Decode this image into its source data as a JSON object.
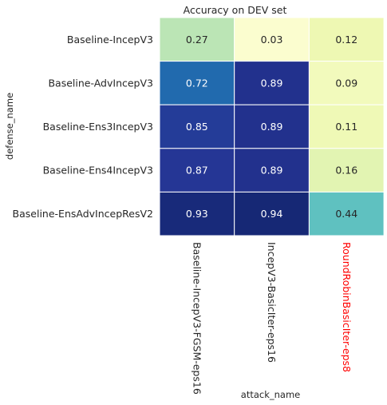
{
  "chart_data": {
    "type": "heatmap",
    "title": "Accuracy on DEV set",
    "xlabel": "attack_name",
    "ylabel": "defense_name",
    "rows": [
      "Baseline-IncepV3",
      "Baseline-AdvIncepV3",
      "Baseline-Ens3IncepV3",
      "Baseline-Ens4IncepV3",
      "Baseline-EnsAdvIncepResV2"
    ],
    "columns": [
      "Baseline-IncepV3-FGSM-eps16",
      "IncepV3-BasicIter-eps16",
      "RoundRobinBasicIter-eps8"
    ],
    "values": [
      [
        0.27,
        0.03,
        0.12
      ],
      [
        0.72,
        0.89,
        0.09
      ],
      [
        0.85,
        0.89,
        0.11
      ],
      [
        0.87,
        0.89,
        0.16
      ],
      [
        0.93,
        0.94,
        0.44
      ]
    ],
    "value_range": [
      0,
      1
    ],
    "colormap": "YlGnBu",
    "colormap_stops": [
      "#ffffd9",
      "#edf8b1",
      "#c7e9b4",
      "#7fcdbb",
      "#41b6c4",
      "#1d91c0",
      "#225ea8",
      "#253494",
      "#081d58"
    ],
    "highlight_column": "RoundRobinBasicIter-eps8",
    "highlight_color": "#ff0000",
    "text_color_dark": "#262626",
    "text_color_light": "#ffffff",
    "grid_line_color": "#ffffff"
  }
}
